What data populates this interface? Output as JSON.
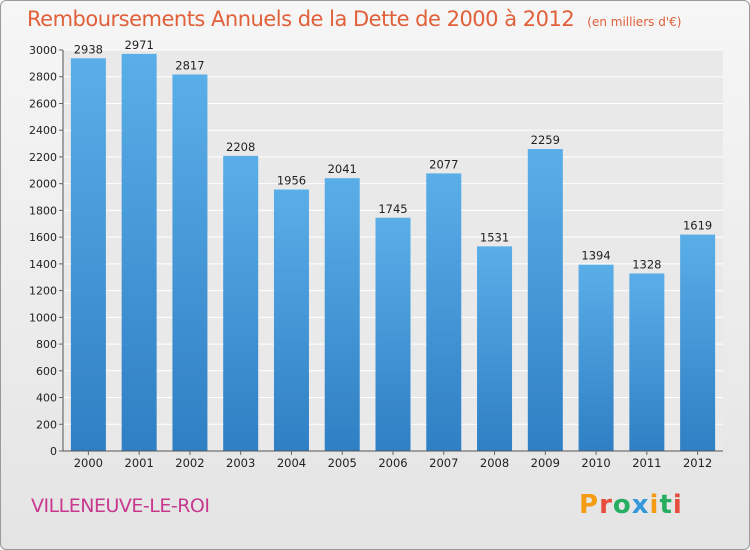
{
  "title": "Remboursements Annuels de la Dette de 2000 à 2012",
  "subtitle": "(en milliers d'€)",
  "town": "VILLENEUVE-LE-ROI",
  "brand": {
    "name": "Proxiti",
    "letter_colors": [
      "#f39c12",
      "#e74c3c",
      "#27ae60",
      "#3498db",
      "#f39c12",
      "#27ae60",
      "#e74c3c"
    ]
  },
  "colors": {
    "bar_top": "#5aaee8",
    "bar_bottom": "#2f7fc4",
    "title": "#e0603a",
    "town": "#c8398e"
  },
  "chart_data": {
    "type": "bar",
    "categories": [
      "2000",
      "2001",
      "2002",
      "2003",
      "2004",
      "2005",
      "2006",
      "2007",
      "2008",
      "2009",
      "2010",
      "2011",
      "2012"
    ],
    "values": [
      2938,
      2971,
      2817,
      2208,
      1956,
      2041,
      1745,
      2077,
      1531,
      2259,
      1394,
      1328,
      1619
    ],
    "ylim": [
      0,
      3000
    ],
    "yticks": [
      0,
      200,
      400,
      600,
      800,
      1000,
      1200,
      1400,
      1600,
      1800,
      2000,
      2200,
      2400,
      2600,
      2800,
      3000
    ],
    "grid": true,
    "legend": "none"
  }
}
